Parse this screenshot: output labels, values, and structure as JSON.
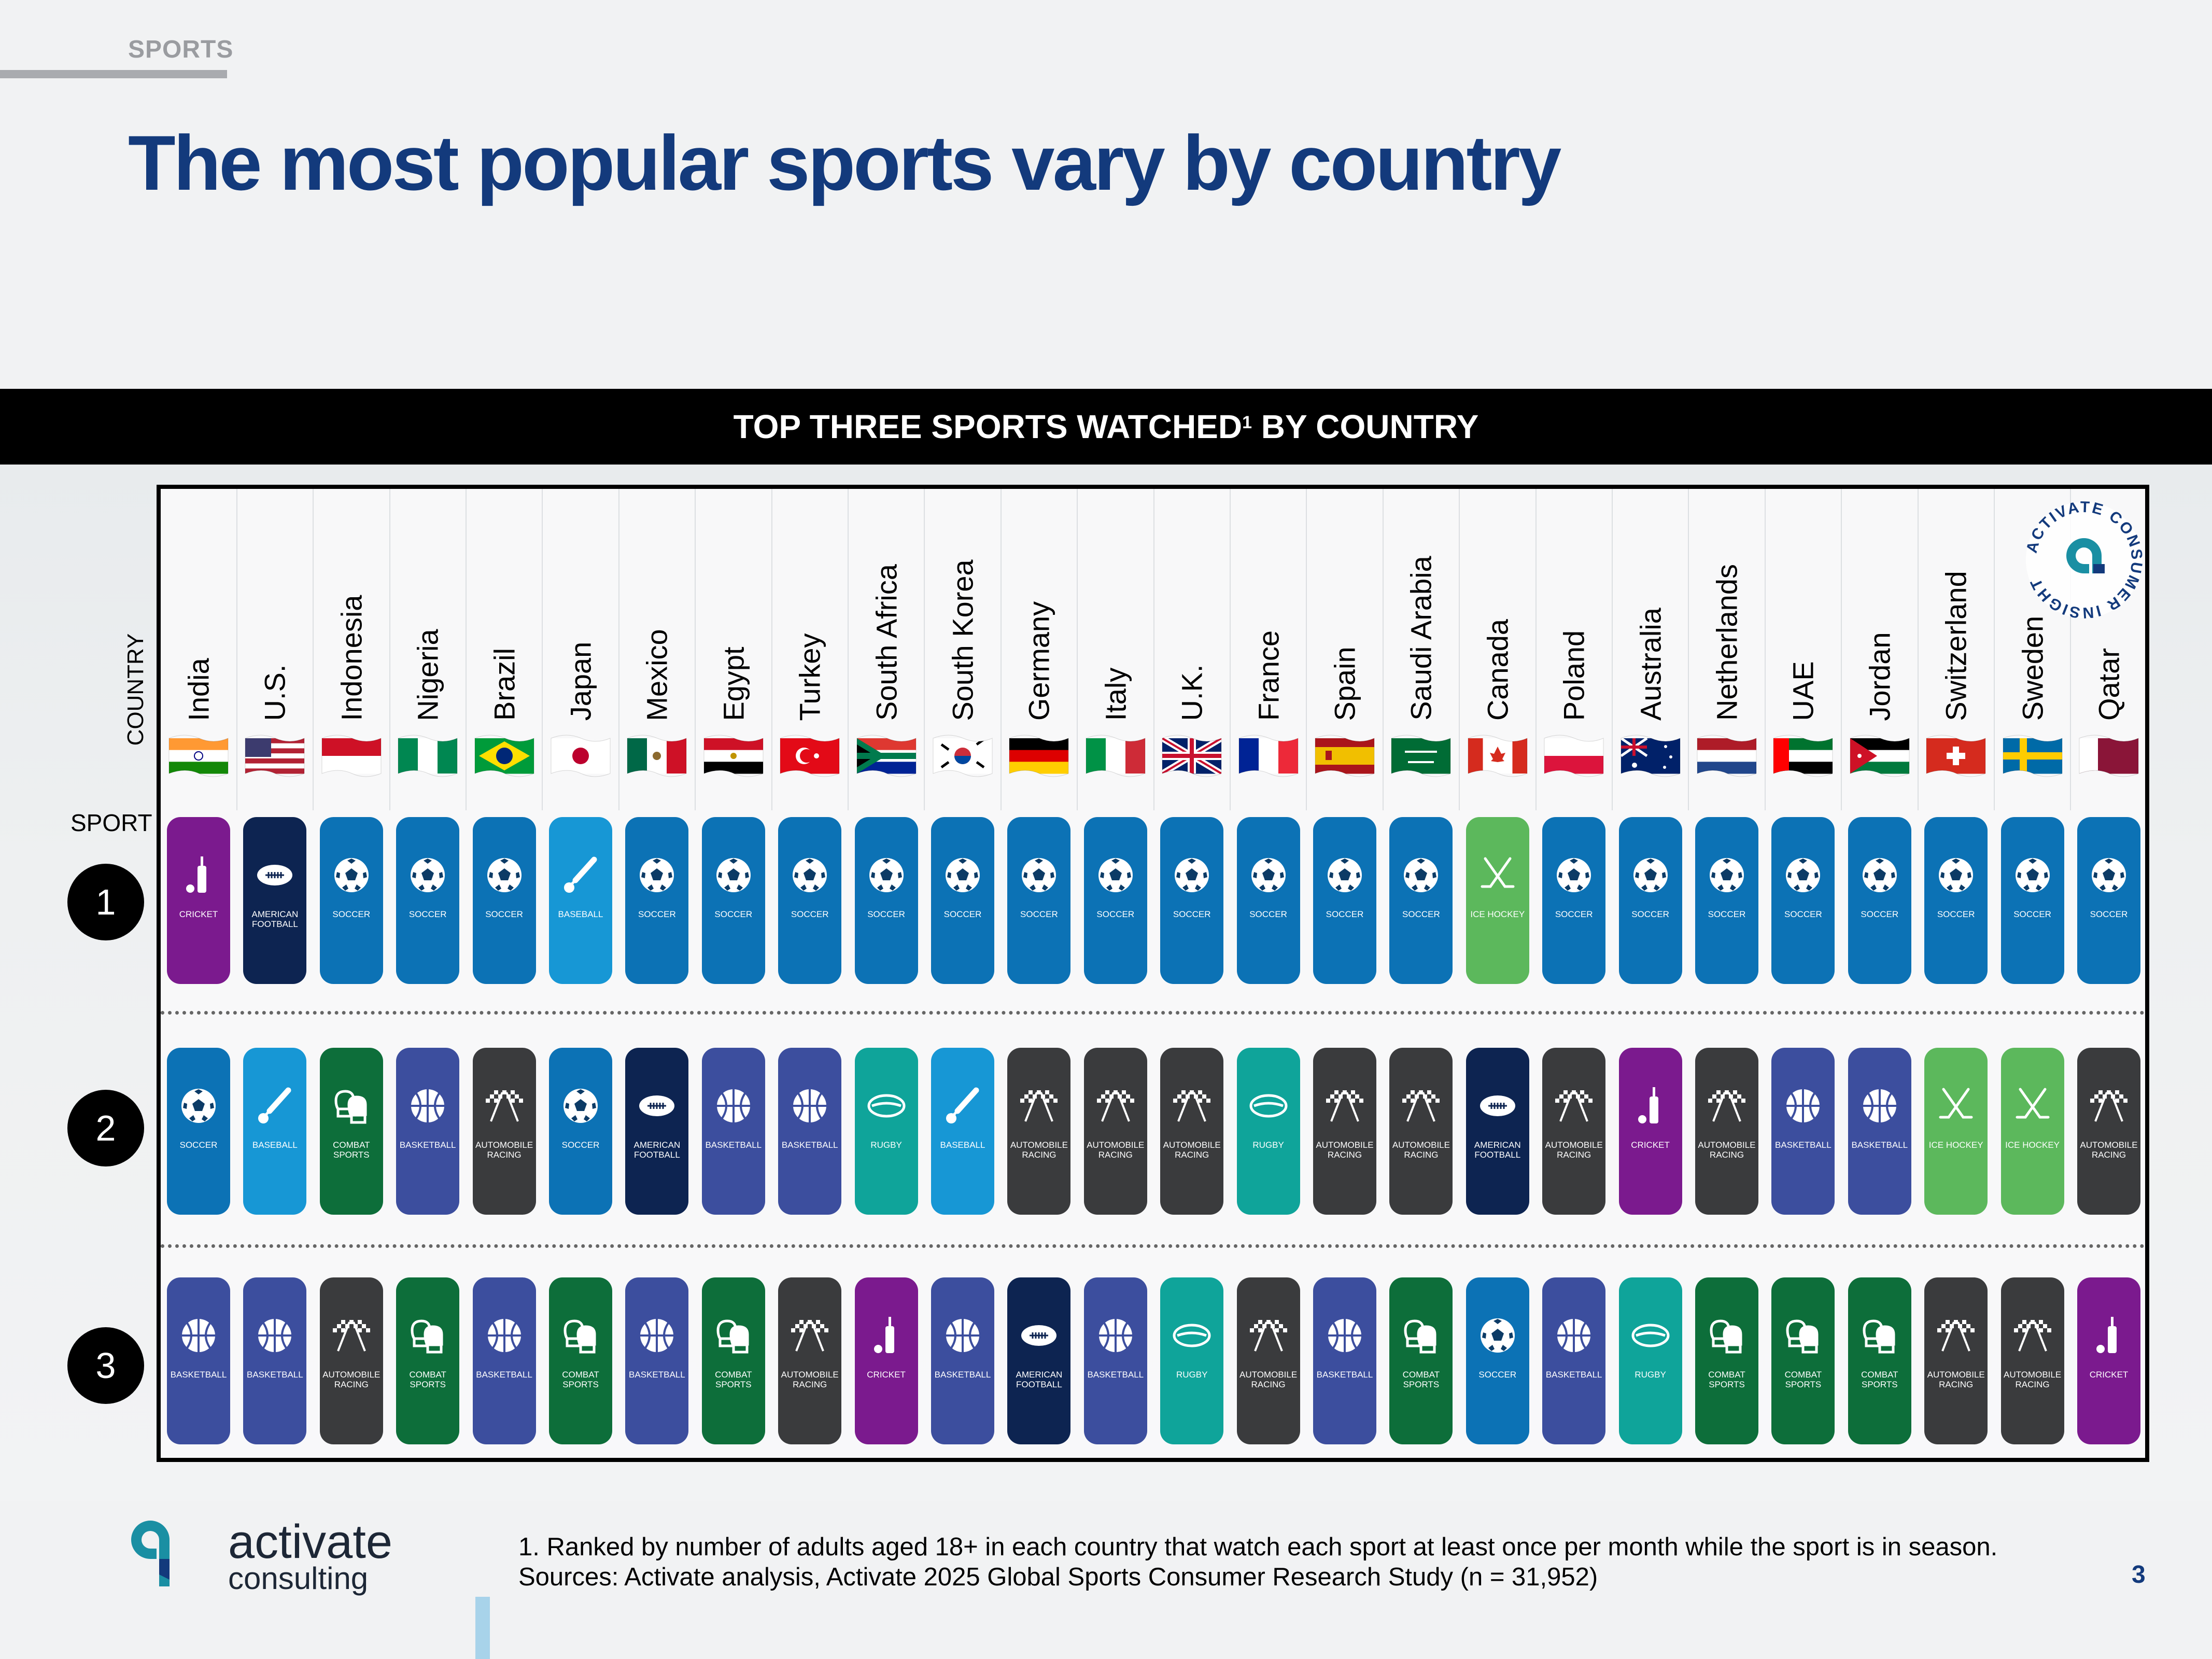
{
  "section_tag": "SPORTS",
  "title": "The most popular sports vary by country",
  "banner": {
    "text": "TOP THREE SPORTS WATCHED",
    "sup": "1",
    "text_after": " BY COUNTRY"
  },
  "axis_labels": {
    "country": "COUNTRY",
    "sport": "SPORT"
  },
  "ranks": [
    "1",
    "2",
    "3"
  ],
  "sports": {
    "CRICKET": {
      "label": "CRICKET",
      "color": "#7b1a8e",
      "icon": "cricket-bat-icon"
    },
    "AMERICAN FOOTBALL": {
      "label": "AMERICAN\nFOOTBALL",
      "color": "#0d2451",
      "icon": "american-football-icon"
    },
    "SOCCER": {
      "label": "SOCCER",
      "color": "#0c72b5",
      "icon": "soccer-ball-icon"
    },
    "BASEBALL": {
      "label": "BASEBALL",
      "color": "#1797d5",
      "icon": "baseball-icon"
    },
    "ICE HOCKEY": {
      "label": "ICE HOCKEY",
      "color": "#5cb85c",
      "icon": "hockey-sticks-icon"
    },
    "COMBAT SPORTS": {
      "label": "COMBAT\nSPORTS",
      "color": "#0d6e3a",
      "icon": "boxing-gloves-icon"
    },
    "BASKETBALL": {
      "label": "BASKETBALL",
      "color": "#3c4e9e",
      "icon": "basketball-icon"
    },
    "AUTOMOBILE RACING": {
      "label": "AUTOMOBILE\nRACING",
      "color": "#3a3b3d",
      "icon": "checkered-flags-icon"
    },
    "RUGBY": {
      "label": "RUGBY",
      "color": "#0fa49a",
      "icon": "rugby-ball-icon"
    }
  },
  "countries": [
    {
      "name": "India",
      "flag": "india-flag-icon",
      "top3": [
        "CRICKET",
        "SOCCER",
        "BASKETBALL"
      ]
    },
    {
      "name": "U.S.",
      "flag": "us-flag-icon",
      "top3": [
        "AMERICAN FOOTBALL",
        "BASEBALL",
        "BASKETBALL"
      ]
    },
    {
      "name": "Indonesia",
      "flag": "indonesia-flag-icon",
      "top3": [
        "SOCCER",
        "COMBAT SPORTS",
        "AUTOMOBILE RACING"
      ]
    },
    {
      "name": "Nigeria",
      "flag": "nigeria-flag-icon",
      "top3": [
        "SOCCER",
        "BASKETBALL",
        "COMBAT SPORTS"
      ]
    },
    {
      "name": "Brazil",
      "flag": "brazil-flag-icon",
      "top3": [
        "SOCCER",
        "AUTOMOBILE RACING",
        "BASKETBALL"
      ]
    },
    {
      "name": "Japan",
      "flag": "japan-flag-icon",
      "top3": [
        "BASEBALL",
        "SOCCER",
        "COMBAT SPORTS"
      ]
    },
    {
      "name": "Mexico",
      "flag": "mexico-flag-icon",
      "top3": [
        "SOCCER",
        "AMERICAN FOOTBALL",
        "BASKETBALL"
      ]
    },
    {
      "name": "Egypt",
      "flag": "egypt-flag-icon",
      "top3": [
        "SOCCER",
        "BASKETBALL",
        "COMBAT SPORTS"
      ]
    },
    {
      "name": "Turkey",
      "flag": "turkey-flag-icon",
      "top3": [
        "SOCCER",
        "BASKETBALL",
        "AUTOMOBILE RACING"
      ]
    },
    {
      "name": "South Africa",
      "flag": "south-africa-flag-icon",
      "top3": [
        "SOCCER",
        "RUGBY",
        "CRICKET"
      ]
    },
    {
      "name": "South Korea",
      "flag": "south-korea-flag-icon",
      "top3": [
        "SOCCER",
        "BASEBALL",
        "BASKETBALL"
      ]
    },
    {
      "name": "Germany",
      "flag": "germany-flag-icon",
      "top3": [
        "SOCCER",
        "AUTOMOBILE RACING",
        "AMERICAN FOOTBALL"
      ]
    },
    {
      "name": "Italy",
      "flag": "italy-flag-icon",
      "top3": [
        "SOCCER",
        "AUTOMOBILE RACING",
        "BASKETBALL"
      ]
    },
    {
      "name": "U.K.",
      "flag": "uk-flag-icon",
      "top3": [
        "SOCCER",
        "AUTOMOBILE RACING",
        "RUGBY"
      ]
    },
    {
      "name": "France",
      "flag": "france-flag-icon",
      "top3": [
        "SOCCER",
        "RUGBY",
        "AUTOMOBILE RACING"
      ]
    },
    {
      "name": "Spain",
      "flag": "spain-flag-icon",
      "top3": [
        "SOCCER",
        "AUTOMOBILE RACING",
        "BASKETBALL"
      ]
    },
    {
      "name": "Saudi Arabia",
      "flag": "saudi-arabia-flag-icon",
      "top3": [
        "SOCCER",
        "AUTOMOBILE RACING",
        "COMBAT SPORTS"
      ]
    },
    {
      "name": "Canada",
      "flag": "canada-flag-icon",
      "top3": [
        "ICE HOCKEY",
        "AMERICAN FOOTBALL",
        "SOCCER"
      ]
    },
    {
      "name": "Poland",
      "flag": "poland-flag-icon",
      "top3": [
        "SOCCER",
        "AUTOMOBILE RACING",
        "BASKETBALL"
      ]
    },
    {
      "name": "Australia",
      "flag": "australia-flag-icon",
      "top3": [
        "SOCCER",
        "CRICKET",
        "RUGBY"
      ]
    },
    {
      "name": "Netherlands",
      "flag": "netherlands-flag-icon",
      "top3": [
        "SOCCER",
        "AUTOMOBILE RACING",
        "COMBAT SPORTS"
      ]
    },
    {
      "name": "UAE",
      "flag": "uae-flag-icon",
      "top3": [
        "SOCCER",
        "BASKETBALL",
        "COMBAT SPORTS"
      ]
    },
    {
      "name": "Jordan",
      "flag": "jordan-flag-icon",
      "top3": [
        "SOCCER",
        "BASKETBALL",
        "COMBAT SPORTS"
      ]
    },
    {
      "name": "Switzerland",
      "flag": "switzerland-flag-icon",
      "top3": [
        "SOCCER",
        "ICE HOCKEY",
        "AUTOMOBILE RACING"
      ]
    },
    {
      "name": "Sweden",
      "flag": "sweden-flag-icon",
      "top3": [
        "SOCCER",
        "ICE HOCKEY",
        "AUTOMOBILE RACING"
      ]
    },
    {
      "name": "Qatar",
      "flag": "qatar-flag-icon",
      "top3": [
        "SOCCER",
        "AUTOMOBILE RACING",
        "CRICKET"
      ]
    }
  ],
  "seal": {
    "text": "ACTIVATE CONSUMER INSIGHT",
    "icon": "activate-logo-icon"
  },
  "logo": {
    "word1": "activate",
    "word2": "consulting",
    "icon": "activate-logo-icon"
  },
  "footnote": {
    "line1": "1. Ranked by number of adults aged 18+ in each country that watch each sport at least once per month while the sport is in season.",
    "line2": "Sources: Activate analysis, Activate 2025 Global Sports Consumer Research Study (n = 31,952)"
  },
  "page_number": "3",
  "colors": {
    "title": "#133a7c",
    "banner_bg": "#000000",
    "logo_teal": "#1a8fa3"
  }
}
